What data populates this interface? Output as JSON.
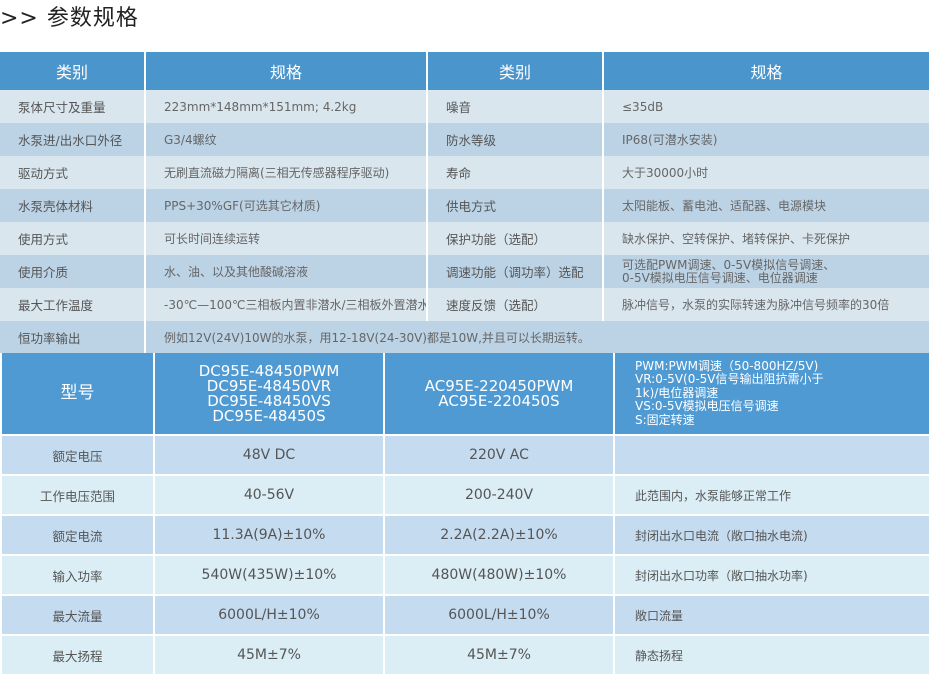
{
  "title": ">> 参数规格",
  "colors": {
    "header_bg": "#4a96cc",
    "row_light": "#d9e6ee",
    "row_dark": "#bcd3e6",
    "model_header_bg": "#4f9ad3"
  },
  "spec_table": {
    "headers": [
      "类别",
      "规格",
      "类别",
      "规格"
    ],
    "rows": [
      {
        "cat1": "泵体尺寸及重量",
        "spec1": "223mm*148mm*151mm; 4.2kg",
        "cat2": "噪音",
        "spec2": "≤35dB"
      },
      {
        "cat1": "水泵进/出水口外径",
        "spec1": "G3/4螺纹",
        "cat2": "防水等级",
        "spec2": "IP68(可潜水安装)"
      },
      {
        "cat1": "驱动方式",
        "spec1": "无刷直流磁力隔离(三相无传感器程序驱动)",
        "cat2": "寿命",
        "spec2": "大于30000小时"
      },
      {
        "cat1": "水泵壳体材料",
        "spec1": "PPS+30%GF(可选其它材质)",
        "cat2": "供电方式",
        "spec2": "太阳能板、蓄电池、适配器、电源模块"
      },
      {
        "cat1": "使用方式",
        "spec1": "可长时间连续运转",
        "cat2": "保护功能（选配）",
        "spec2": "缺水保护、空转保护、堵转保护、卡死保护"
      },
      {
        "cat1": "使用介质",
        "spec1": "水、油、以及其他酸碱溶液",
        "cat2": "调速功能（调功率）选配",
        "spec2": "可选配PWM调速、0-5V模拟信号调速、\n0-5V模拟电压信号调速、电位器调速"
      },
      {
        "cat1": "最大工作温度",
        "spec1": "-30℃—100℃三相板内置非潜水/三相板外置潜水",
        "cat2": "速度反馈（选配）",
        "spec2": "脉冲信号，水泵的实际转速为脉冲信号频率的30倍"
      }
    ],
    "merged_row": {
      "cat": "恒功率输出",
      "spec": "例如12V(24V)10W的水泵，用12-18V(24-30V)都是10W,并且可以长期运转。"
    }
  },
  "model_table": {
    "header_label": "型号",
    "dc_models": [
      "DC95E-48450PWM",
      "DC95E-48450VR",
      "DC95E-48450VS",
      "DC95E-48450S"
    ],
    "ac_models": [
      "AC95E-220450PWM",
      "AC95E-220450S"
    ],
    "notes": [
      "PWM:PWM调速（50-800HZ/5V)",
      "VR:0-5V(0-5V信号输出阻抗需小于",
      "1k)/电位器调速",
      "VS:0-5V模拟电压信号调速",
      "S:固定转速"
    ],
    "rows": [
      {
        "cat": "额定电压",
        "dc": "48V DC",
        "ac": "220V AC",
        "note": ""
      },
      {
        "cat": "工作电压范围",
        "dc": "40-56V",
        "ac": "200-240V",
        "note": "此范围内，水泵能够正常工作"
      },
      {
        "cat": "额定电流",
        "dc": "11.3A(9A)±10%",
        "ac": "2.2A(2.2A)±10%",
        "note": "封闭出水口电流（敞口抽水电流)"
      },
      {
        "cat": "输入功率",
        "dc": "540W(435W)±10%",
        "ac": "480W(480W)±10%",
        "note": "封闭出水口功率（敞口抽水功率)"
      },
      {
        "cat": "最大流量",
        "dc": "6000L/H±10%",
        "ac": "6000L/H±10%",
        "note": "敞口流量"
      },
      {
        "cat": "最大扬程",
        "dc": "45M±7%",
        "ac": "45M±7%",
        "note": "静态扬程"
      }
    ]
  }
}
